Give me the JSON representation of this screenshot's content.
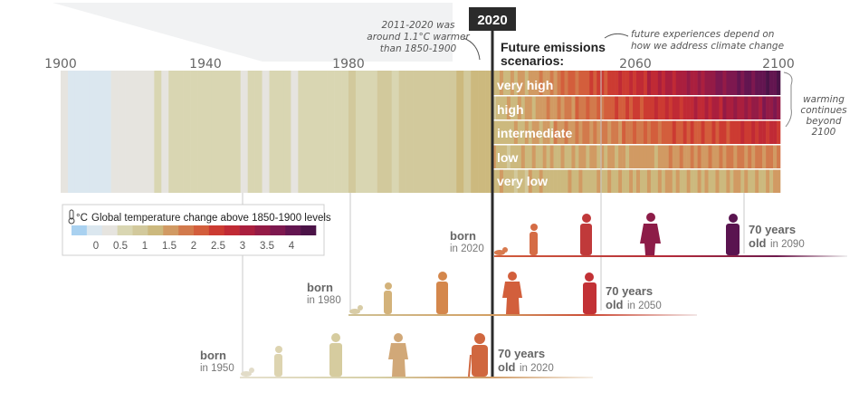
{
  "chart_data": {
    "type": "heatmap",
    "x_axis": {
      "ticks": [
        "1900",
        "1940",
        "1980",
        "2020",
        "2060",
        "2100"
      ],
      "range": [
        1900,
        2100
      ]
    },
    "marker_year": "2020",
    "annotations": {
      "left_note": [
        "2011-2020 was",
        "around 1.1°C warmer",
        "than 1850-1900"
      ],
      "top_note": [
        "future experiences depend on",
        "how we address climate change"
      ],
      "right_note": [
        "warming",
        "continues",
        "beyond",
        "2100"
      ]
    },
    "scenarios_title": [
      "Future emissions",
      "scenarios:"
    ],
    "scenarios": [
      {
        "name": "very high",
        "end_warming": 4.2
      },
      {
        "name": "high",
        "end_warming": 3.6
      },
      {
        "name": "intermediate",
        "end_warming": 2.7
      },
      {
        "name": "low",
        "end_warming": 1.8
      },
      {
        "name": "very low",
        "end_warming": 1.4
      }
    ],
    "observed_warming_by_year": [
      {
        "year": 1900,
        "value": 0.4
      },
      {
        "year": 1902,
        "value": 0.1
      },
      {
        "year": 1904,
        "value": 0.1
      },
      {
        "year": 1906,
        "value": 0.05
      },
      {
        "year": 1908,
        "value": 0.0
      },
      {
        "year": 1910,
        "value": 0.0
      },
      {
        "year": 1912,
        "value": 0.05
      },
      {
        "year": 1914,
        "value": 0.2
      },
      {
        "year": 1916,
        "value": 0.3
      },
      {
        "year": 1918,
        "value": 0.2
      },
      {
        "year": 1920,
        "value": 0.3
      },
      {
        "year": 1922,
        "value": 0.3
      },
      {
        "year": 1924,
        "value": 0.35
      },
      {
        "year": 1926,
        "value": 0.45
      },
      {
        "year": 1928,
        "value": 0.4
      },
      {
        "year": 1930,
        "value": 0.45
      },
      {
        "year": 1932,
        "value": 0.5
      },
      {
        "year": 1934,
        "value": 0.45
      },
      {
        "year": 1936,
        "value": 0.5
      },
      {
        "year": 1938,
        "value": 0.6
      },
      {
        "year": 1940,
        "value": 0.65
      },
      {
        "year": 1942,
        "value": 0.6
      },
      {
        "year": 1944,
        "value": 0.7
      },
      {
        "year": 1946,
        "value": 0.5
      },
      {
        "year": 1948,
        "value": 0.5
      },
      {
        "year": 1950,
        "value": 0.4
      },
      {
        "year": 1952,
        "value": 0.55
      },
      {
        "year": 1954,
        "value": 0.45
      },
      {
        "year": 1956,
        "value": 0.4
      },
      {
        "year": 1958,
        "value": 0.6
      },
      {
        "year": 1960,
        "value": 0.55
      },
      {
        "year": 1962,
        "value": 0.55
      },
      {
        "year": 1964,
        "value": 0.4
      },
      {
        "year": 1966,
        "value": 0.5
      },
      {
        "year": 1968,
        "value": 0.45
      },
      {
        "year": 1970,
        "value": 0.55
      },
      {
        "year": 1972,
        "value": 0.5
      },
      {
        "year": 1974,
        "value": 0.45
      },
      {
        "year": 1976,
        "value": 0.45
      },
      {
        "year": 1978,
        "value": 0.6
      },
      {
        "year": 1980,
        "value": 0.75
      },
      {
        "year": 1982,
        "value": 0.7
      },
      {
        "year": 1984,
        "value": 0.65
      },
      {
        "year": 1986,
        "value": 0.7
      },
      {
        "year": 1988,
        "value": 0.85
      },
      {
        "year": 1990,
        "value": 0.9
      },
      {
        "year": 1992,
        "value": 0.7
      },
      {
        "year": 1994,
        "value": 0.8
      },
      {
        "year": 1996,
        "value": 0.8
      },
      {
        "year": 1998,
        "value": 1.05
      },
      {
        "year": 2000,
        "value": 0.9
      },
      {
        "year": 2002,
        "value": 1.0
      },
      {
        "year": 2004,
        "value": 1.0
      },
      {
        "year": 2006,
        "value": 1.05
      },
      {
        "year": 2008,
        "value": 0.95
      },
      {
        "year": 2010,
        "value": 1.15
      },
      {
        "year": 2012,
        "value": 1.05
      },
      {
        "year": 2014,
        "value": 1.1
      },
      {
        "year": 2016,
        "value": 1.3
      },
      {
        "year": 2018,
        "value": 1.2
      }
    ],
    "legend": {
      "title": "Global temperature change above 1850-1900 levels",
      "unit": "°C",
      "tick_labels": [
        "0",
        "0.5",
        "1",
        "1.5",
        "2",
        "2.5",
        "3",
        "3.5",
        "4"
      ],
      "ticks": [
        0,
        0.5,
        1,
        1.5,
        2,
        2.5,
        3,
        3.5,
        4
      ],
      "range": [
        -0.5,
        4.5
      ],
      "colors": [
        "#a9d1f0",
        "#dbe7ef",
        "#e6e4df",
        "#d9d6b2",
        "#d2c99c",
        "#ccb97e",
        "#d19a63",
        "#d27a4c",
        "#d35e3c",
        "#cc3b32",
        "#c02a35",
        "#aa1f3e",
        "#941b46",
        "#7d184f",
        "#631550",
        "#4b1347"
      ]
    },
    "generations": [
      {
        "born_label": "born",
        "born_year": "in 2020",
        "seventy_line1": "70 years",
        "seventy_label": "old",
        "seventy_year": "in 2090"
      },
      {
        "born_label": "born",
        "born_year": "in 1980",
        "seventy_line1": "70 years",
        "seventy_label": "old",
        "seventy_year": "in 2050"
      },
      {
        "born_label": "born",
        "born_year": "in 1950",
        "seventy_line1": "70 years",
        "seventy_label": "old",
        "seventy_year": "in 2020"
      }
    ]
  }
}
